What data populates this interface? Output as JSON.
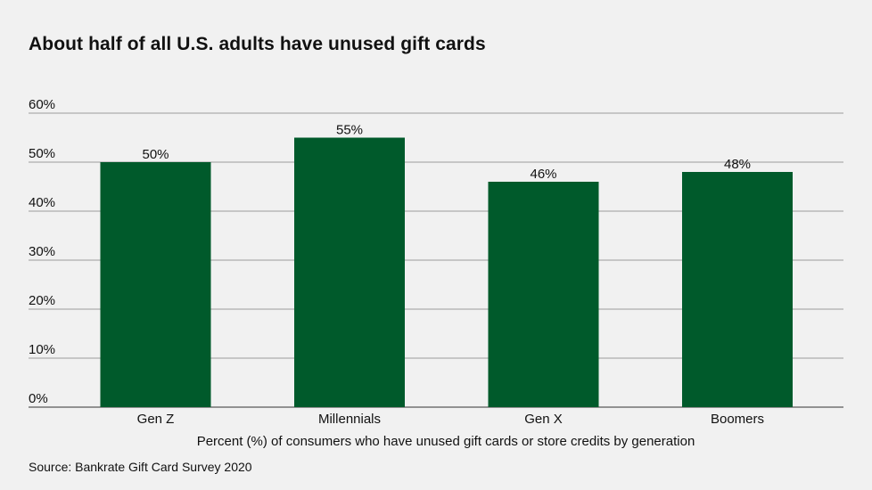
{
  "chart_data": {
    "type": "bar",
    "title": "About half of all U.S. adults have unused gift cards",
    "categories": [
      "Gen Z",
      "Millennials",
      "Gen X",
      "Boomers"
    ],
    "values": [
      50,
      55,
      46,
      48
    ],
    "data_labels": [
      "50%",
      "55%",
      "46%",
      "48%"
    ],
    "ylim": [
      0,
      60
    ],
    "yticks": [
      0,
      10,
      20,
      30,
      40,
      50,
      60
    ],
    "ytick_labels": [
      "0%",
      "10%",
      "20%",
      "30%",
      "40%",
      "50%",
      "60%"
    ],
    "xlabel": "Percent (%) of consumers who have unused gift cards or store credits by generation",
    "ylabel": "",
    "grid": true,
    "legend": "none",
    "bar_color": "#005a2b",
    "source": "Source: Bankrate Gift Card Survey 2020"
  }
}
